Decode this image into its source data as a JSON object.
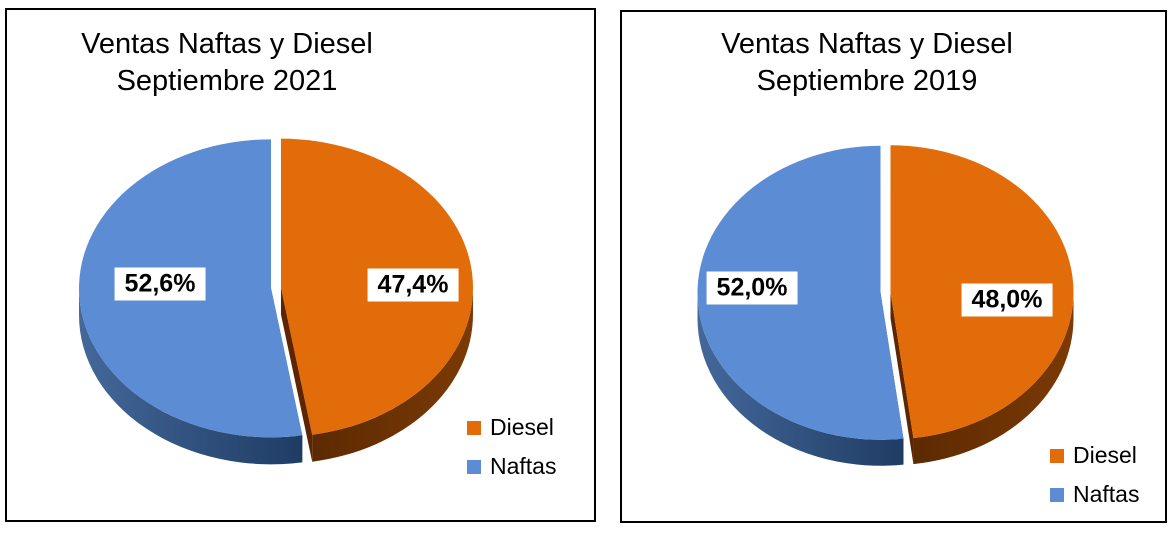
{
  "chart_data": [
    {
      "type": "pie",
      "style": "3d-exploded",
      "title": {
        "line1": "Ventas Naftas y Diesel",
        "line2": "Septiembre 2021"
      },
      "unit": "%",
      "start_angle_deg": -90,
      "direction": "clockwise",
      "slices": [
        {
          "name": "Diesel",
          "value": 47.4,
          "label": "47,4%",
          "color": "#E26C09",
          "side_from": "#5C2A01",
          "side_to": "#7B3A05",
          "cut": "#5E2600"
        },
        {
          "name": "Naftas",
          "value": 52.6,
          "label": "52,6%",
          "color": "#5B8CD4",
          "side_from": "#44689B",
          "side_to": "#1F3C63",
          "cut": "#223E5F"
        }
      ],
      "legend": {
        "items": [
          "Diesel",
          "Naftas"
        ],
        "position": "bottom-right"
      }
    },
    {
      "type": "pie",
      "style": "3d-exploded",
      "title": {
        "line1": "Ventas Naftas y Diesel",
        "line2": "Septiembre 2019"
      },
      "unit": "%",
      "start_angle_deg": -90,
      "direction": "clockwise",
      "slices": [
        {
          "name": "Diesel",
          "value": 48.0,
          "label": "48,0%",
          "color": "#E26C09",
          "side_from": "#5C2A01",
          "side_to": "#7B3A05",
          "cut": "#5E2600"
        },
        {
          "name": "Naftas",
          "value": 52.0,
          "label": "52,0%",
          "color": "#5B8CD4",
          "side_from": "#44689B",
          "side_to": "#1F3C63",
          "cut": "#223E5F"
        }
      ],
      "legend": {
        "items": [
          "Diesel",
          "Naftas"
        ],
        "position": "bottom-right"
      }
    }
  ]
}
